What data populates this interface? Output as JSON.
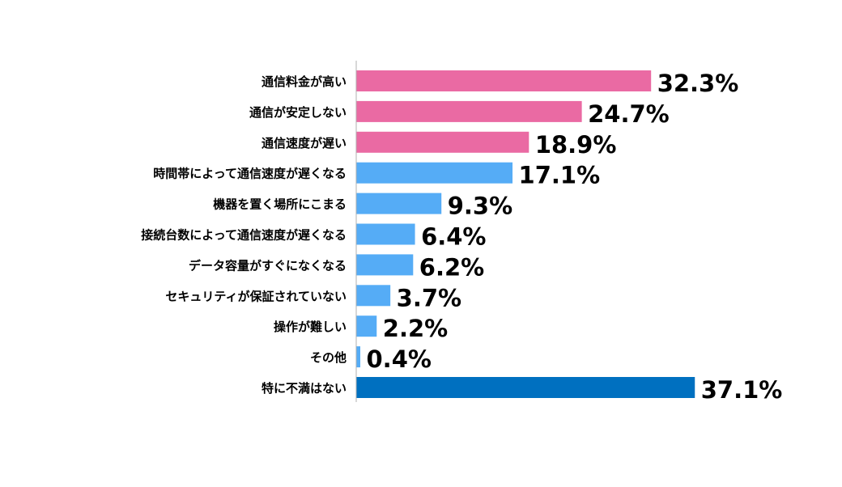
{
  "chart_data": {
    "type": "bar",
    "orientation": "horizontal",
    "unit": "%",
    "categories": [
      "通信料金が高い",
      "通信が安定しない",
      "通信速度が遅い",
      "時間帯によって通信速度が遅くなる",
      "機器を置く場所にこまる",
      "接続台数によって通信速度が遅くなる",
      "データ容量がすぐになくなる",
      "セキュリティが保証されていない",
      "操作が難しい",
      "その他",
      "特に不満はない"
    ],
    "values": [
      32.3,
      24.7,
      18.9,
      17.1,
      9.3,
      6.4,
      6.2,
      3.7,
      2.2,
      0.4,
      37.1
    ],
    "value_labels": [
      "32.3%",
      "24.7%",
      "18.9%",
      "17.1%",
      "9.3%",
      "6.4%",
      "6.2%",
      "3.7%",
      "2.2%",
      "0.4%",
      "37.1%"
    ],
    "bar_colors": [
      "#ea6aa3",
      "#ea6aa3",
      "#ea6aa3",
      "#55acf6",
      "#55acf6",
      "#55acf6",
      "#55acf6",
      "#55acf6",
      "#55acf6",
      "#55acf6",
      "#0070c0"
    ],
    "xlim": [
      0,
      40
    ],
    "grid": false,
    "legend": "none",
    "title": "",
    "xlabel": "",
    "ylabel": ""
  }
}
